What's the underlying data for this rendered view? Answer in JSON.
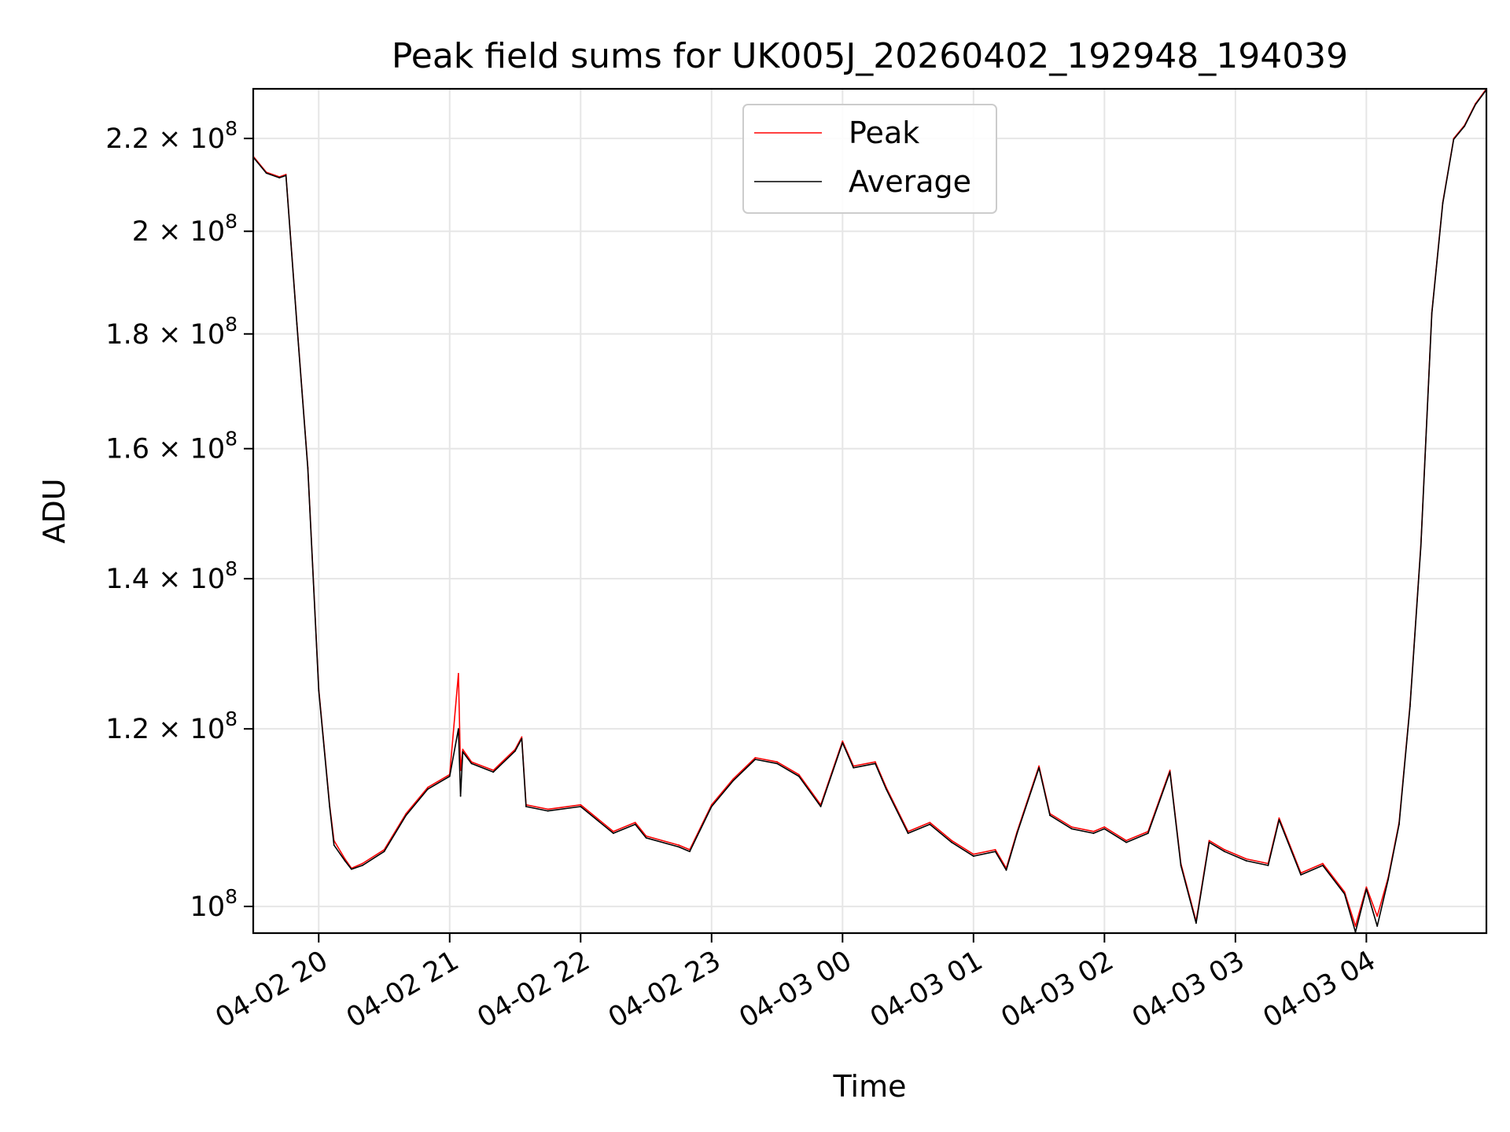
{
  "chart_data": {
    "type": "line",
    "title": "Peak field sums for UK005J_20260402_192948_194039",
    "xlabel": "Time",
    "ylabel": "ADU",
    "y_scale": "log",
    "grid": true,
    "legend_position": "upper center",
    "x_tick_labels": [
      "04-02 20",
      "04-02 21",
      "04-02 22",
      "04-02 23",
      "04-03 00",
      "04-03 01",
      "04-03 02",
      "04-03 03",
      "04-03 04"
    ],
    "x_tick_times": [
      "2026-04-02 20:00",
      "2026-04-02 21:00",
      "2026-04-02 22:00",
      "2026-04-02 23:00",
      "2026-04-03 00:00",
      "2026-04-03 01:00",
      "2026-04-03 02:00",
      "2026-04-03 03:00",
      "2026-04-03 04:00"
    ],
    "x_range": [
      "2026-04-02 19:30",
      "2026-04-03 04:55"
    ],
    "y_ticks": [
      {
        "value": 100000000,
        "mantissa": "",
        "base": "10",
        "exp": "8"
      },
      {
        "value": 120000000,
        "mantissa": "1.2",
        "base": "10",
        "exp": "8"
      },
      {
        "value": 140000000,
        "mantissa": "1.4",
        "base": "10",
        "exp": "8"
      },
      {
        "value": 160000000,
        "mantissa": "1.6",
        "base": "10",
        "exp": "8"
      },
      {
        "value": 180000000,
        "mantissa": "1.8",
        "base": "10",
        "exp": "8"
      },
      {
        "value": 200000000,
        "mantissa": "2",
        "base": "10",
        "exp": "8"
      },
      {
        "value": 220000000,
        "mantissa": "2.2",
        "base": "10",
        "exp": "8"
      }
    ],
    "y_range": [
      97300000,
      231500000
    ],
    "series": [
      {
        "name": "Peak",
        "color": "#ff0000",
        "x": [
          "2026-04-02 19:30",
          "2026-04-02 19:36",
          "2026-04-02 19:42",
          "2026-04-02 19:45",
          "2026-04-02 19:50",
          "2026-04-02 19:55",
          "2026-04-02 20:00",
          "2026-04-02 20:05",
          "2026-04-02 20:07",
          "2026-04-02 20:12",
          "2026-04-02 20:15",
          "2026-04-02 20:20",
          "2026-04-02 20:30",
          "2026-04-02 20:40",
          "2026-04-02 20:50",
          "2026-04-02 21:00",
          "2026-04-02 21:04",
          "2026-04-02 21:05",
          "2026-04-02 21:06",
          "2026-04-02 21:10",
          "2026-04-02 21:20",
          "2026-04-02 21:30",
          "2026-04-02 21:33",
          "2026-04-02 21:35",
          "2026-04-02 21:45",
          "2026-04-02 22:00",
          "2026-04-02 22:15",
          "2026-04-02 22:25",
          "2026-04-02 22:30",
          "2026-04-02 22:45",
          "2026-04-02 22:50",
          "2026-04-02 23:00",
          "2026-04-02 23:10",
          "2026-04-02 23:20",
          "2026-04-02 23:30",
          "2026-04-02 23:40",
          "2026-04-02 23:50",
          "2026-04-03 00:00",
          "2026-04-03 00:05",
          "2026-04-03 00:15",
          "2026-04-03 00:20",
          "2026-04-03 00:30",
          "2026-04-03 00:40",
          "2026-04-03 00:50",
          "2026-04-03 01:00",
          "2026-04-03 01:10",
          "2026-04-03 01:15",
          "2026-04-03 01:20",
          "2026-04-03 01:30",
          "2026-04-03 01:35",
          "2026-04-03 01:45",
          "2026-04-03 01:55",
          "2026-04-03 02:00",
          "2026-04-03 02:10",
          "2026-04-03 02:20",
          "2026-04-03 02:30",
          "2026-04-03 02:35",
          "2026-04-03 02:42",
          "2026-04-03 02:48",
          "2026-04-03 02:55",
          "2026-04-03 03:05",
          "2026-04-03 03:15",
          "2026-04-03 03:20",
          "2026-04-03 03:30",
          "2026-04-03 03:40",
          "2026-04-03 03:50",
          "2026-04-03 03:55",
          "2026-04-03 04:00",
          "2026-04-03 04:05",
          "2026-04-03 04:10",
          "2026-04-03 04:15",
          "2026-04-03 04:20",
          "2026-04-03 04:25",
          "2026-04-03 04:30",
          "2026-04-03 04:35",
          "2026-04-03 04:40",
          "2026-04-03 04:45",
          "2026-04-03 04:50",
          "2026-04-03 04:55"
        ],
        "y": [
          216000000,
          212500000,
          211500000,
          212000000,
          182000000,
          157000000,
          125000000,
          111000000,
          107000000,
          105000000,
          104000000,
          104500000,
          106000000,
          110000000,
          113000000,
          114500000,
          127000000,
          115000000,
          117500000,
          116000000,
          115000000,
          117500000,
          119000000,
          111000000,
          110500000,
          111000000,
          108000000,
          109000000,
          107500000,
          106500000,
          106000000,
          111000000,
          114000000,
          116500000,
          116000000,
          114500000,
          111000000,
          118500000,
          115500000,
          116000000,
          113000000,
          108000000,
          109000000,
          107000000,
          105500000,
          106000000,
          104000000,
          108000000,
          115500000,
          110000000,
          108500000,
          108000000,
          108500000,
          107000000,
          108000000,
          115000000,
          104500000,
          98500000,
          107000000,
          106000000,
          105000000,
          104500000,
          109500000,
          103500000,
          104500000,
          101500000,
          98000000,
          102000000,
          99000000,
          103000000,
          109000000,
          123000000,
          145000000,
          184000000,
          206000000,
          220000000,
          223000000,
          228000000,
          231500000
        ]
      },
      {
        "name": "Average",
        "color": "#000000",
        "x": [
          "2026-04-02 19:30",
          "2026-04-02 19:36",
          "2026-04-02 19:42",
          "2026-04-02 19:45",
          "2026-04-02 19:50",
          "2026-04-02 19:55",
          "2026-04-02 20:00",
          "2026-04-02 20:05",
          "2026-04-02 20:07",
          "2026-04-02 20:12",
          "2026-04-02 20:15",
          "2026-04-02 20:20",
          "2026-04-02 20:30",
          "2026-04-02 20:40",
          "2026-04-02 20:50",
          "2026-04-02 21:00",
          "2026-04-02 21:04",
          "2026-04-02 21:05",
          "2026-04-02 21:06",
          "2026-04-02 21:10",
          "2026-04-02 21:20",
          "2026-04-02 21:30",
          "2026-04-02 21:33",
          "2026-04-02 21:35",
          "2026-04-02 21:45",
          "2026-04-02 22:00",
          "2026-04-02 22:15",
          "2026-04-02 22:25",
          "2026-04-02 22:30",
          "2026-04-02 22:45",
          "2026-04-02 22:50",
          "2026-04-02 23:00",
          "2026-04-02 23:10",
          "2026-04-02 23:20",
          "2026-04-02 23:30",
          "2026-04-02 23:40",
          "2026-04-02 23:50",
          "2026-04-03 00:00",
          "2026-04-03 00:05",
          "2026-04-03 00:15",
          "2026-04-03 00:20",
          "2026-04-03 00:30",
          "2026-04-03 00:40",
          "2026-04-03 00:50",
          "2026-04-03 01:00",
          "2026-04-03 01:10",
          "2026-04-03 01:15",
          "2026-04-03 01:20",
          "2026-04-03 01:30",
          "2026-04-03 01:35",
          "2026-04-03 01:45",
          "2026-04-03 01:55",
          "2026-04-03 02:00",
          "2026-04-03 02:10",
          "2026-04-03 02:20",
          "2026-04-03 02:30",
          "2026-04-03 02:35",
          "2026-04-03 02:42",
          "2026-04-03 02:48",
          "2026-04-03 02:55",
          "2026-04-03 03:05",
          "2026-04-03 03:15",
          "2026-04-03 03:20",
          "2026-04-03 03:30",
          "2026-04-03 03:40",
          "2026-04-03 03:50",
          "2026-04-03 03:55",
          "2026-04-03 04:00",
          "2026-04-03 04:05",
          "2026-04-03 04:10",
          "2026-04-03 04:15",
          "2026-04-03 04:20",
          "2026-04-03 04:25",
          "2026-04-03 04:30",
          "2026-04-03 04:35",
          "2026-04-03 04:40",
          "2026-04-03 04:45",
          "2026-04-03 04:50",
          "2026-04-03 04:55"
        ],
        "y": [
          215800000,
          212300000,
          211300000,
          211800000,
          181800000,
          156800000,
          124800000,
          110800000,
          106500000,
          104800000,
          103900000,
          104300000,
          105800000,
          109800000,
          112800000,
          114300000,
          120000000,
          112000000,
          117200000,
          115800000,
          114800000,
          117300000,
          118800000,
          110800000,
          110300000,
          110800000,
          107800000,
          108800000,
          107300000,
          106300000,
          105800000,
          110800000,
          113800000,
          116300000,
          115800000,
          114300000,
          110800000,
          118300000,
          115300000,
          115800000,
          112800000,
          107800000,
          108800000,
          106800000,
          105300000,
          105800000,
          103800000,
          107800000,
          115300000,
          109800000,
          108300000,
          107800000,
          108300000,
          106800000,
          107800000,
          114800000,
          104300000,
          98300000,
          106800000,
          105800000,
          104800000,
          104300000,
          109300000,
          103300000,
          104300000,
          101300000,
          97400000,
          101800000,
          98000000,
          102800000,
          108800000,
          122800000,
          144800000,
          183800000,
          205800000,
          219800000,
          222800000,
          227800000,
          231300000
        ]
      }
    ]
  }
}
